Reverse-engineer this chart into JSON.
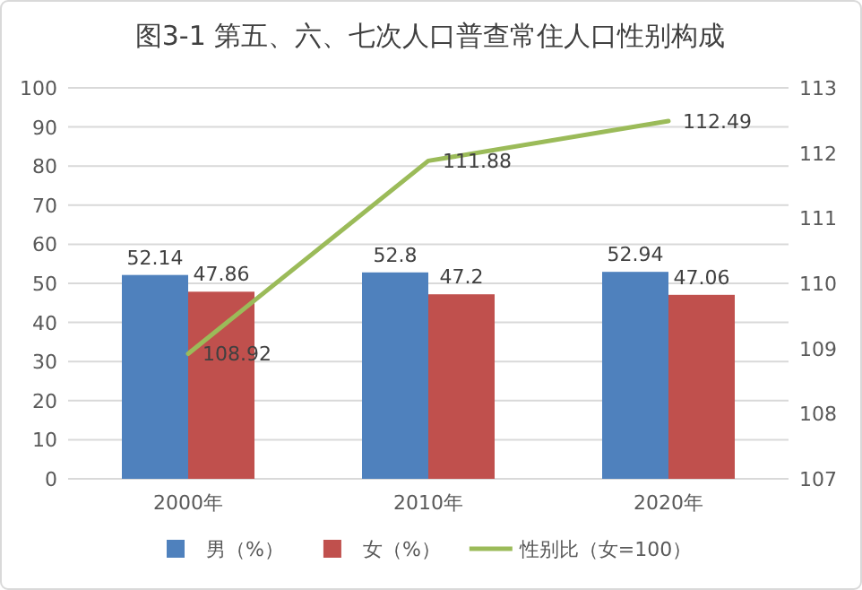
{
  "chart_data": {
    "type": "bar",
    "title": "图3-1 第五、六、七次人口普查常住人口性别构成",
    "categories": [
      "2000年",
      "2010年",
      "2020年"
    ],
    "series": [
      {
        "name": "男（%）",
        "color": "#4f81bd",
        "values": [
          52.14,
          52.8,
          52.94
        ]
      },
      {
        "name": "女（%）",
        "color": "#c0504d",
        "values": [
          47.86,
          47.2,
          47.06
        ]
      },
      {
        "name": "性别比（女=100）",
        "color": "#9bbb59",
        "type": "line",
        "axis": "y2",
        "values": [
          108.92,
          111.88,
          112.49
        ]
      }
    ],
    "ylim": [
      0,
      100
    ],
    "yticks": [
      0,
      10,
      20,
      30,
      40,
      50,
      60,
      70,
      80,
      90,
      100
    ],
    "y2lim": [
      107,
      113
    ],
    "y2ticks": [
      107,
      108,
      109,
      110,
      111,
      112,
      113
    ],
    "grid": "y",
    "legend": "bottom",
    "data_labels": true
  }
}
